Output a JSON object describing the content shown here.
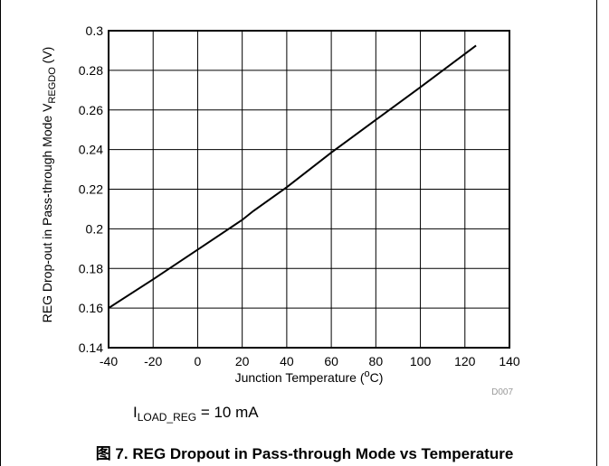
{
  "chart_data": {
    "type": "line",
    "x": [
      -40,
      -20,
      0,
      20,
      25,
      40,
      60,
      80,
      100,
      125
    ],
    "series": [
      {
        "values": [
          0.16,
          0.1745,
          0.1895,
          0.2045,
          0.209,
          0.221,
          0.2385,
          0.255,
          0.2715,
          0.2925
        ]
      }
    ],
    "xlabel": {
      "main": "Junction Temperature (",
      "sup": "o",
      "tail": "C)"
    },
    "ylabel": {
      "main": "REG Drop-out in Pass-through Mode V",
      "sub": "REGDO",
      "tail": " (V)"
    },
    "xlim": [
      -40,
      140
    ],
    "ylim": [
      0.14,
      0.3
    ],
    "xticks": [
      "-40",
      "-20",
      "0",
      "20",
      "40",
      "60",
      "80",
      "100",
      "120",
      "140"
    ],
    "yticks": [
      "0.14",
      "0.16",
      "0.18",
      "0.2",
      "0.22",
      "0.24",
      "0.26",
      "0.28",
      "0.3"
    ],
    "grid": true,
    "figure_id": "D007",
    "colors": {
      "line": "#000000",
      "grid": "#000000"
    }
  },
  "condition": {
    "prefix": "I",
    "sub": "LOAD_REG",
    "value": " = 10 mA"
  },
  "caption": "图 7. REG Dropout in Pass-through Mode vs Temperature"
}
